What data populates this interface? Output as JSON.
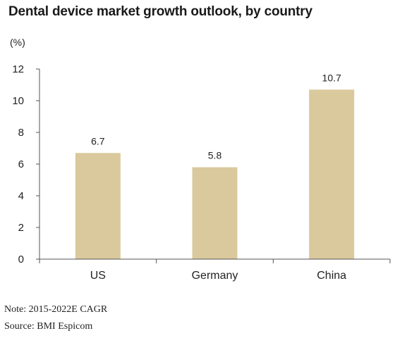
{
  "chart_data": {
    "type": "bar",
    "title": "Dental device market growth outlook, by country",
    "unit_label": "(%)",
    "categories": [
      "US",
      "Germany",
      "China"
    ],
    "values": [
      6.7,
      5.8,
      10.7
    ],
    "data_labels": [
      "6.7",
      "5.8",
      "10.7"
    ],
    "ylim": [
      0,
      12
    ],
    "yticks": [
      0,
      2,
      4,
      6,
      8,
      10,
      12
    ],
    "ytick_labels": [
      "0",
      "2",
      "4",
      "6",
      "8",
      "10",
      "12"
    ],
    "xlabel": "",
    "ylabel": "",
    "grid": false,
    "bar_color": "#d9c99c",
    "axis_color": "#555555"
  },
  "footer": {
    "note": "Note: 2015-2022E CAGR",
    "source": "Source: BMI Espicom"
  }
}
